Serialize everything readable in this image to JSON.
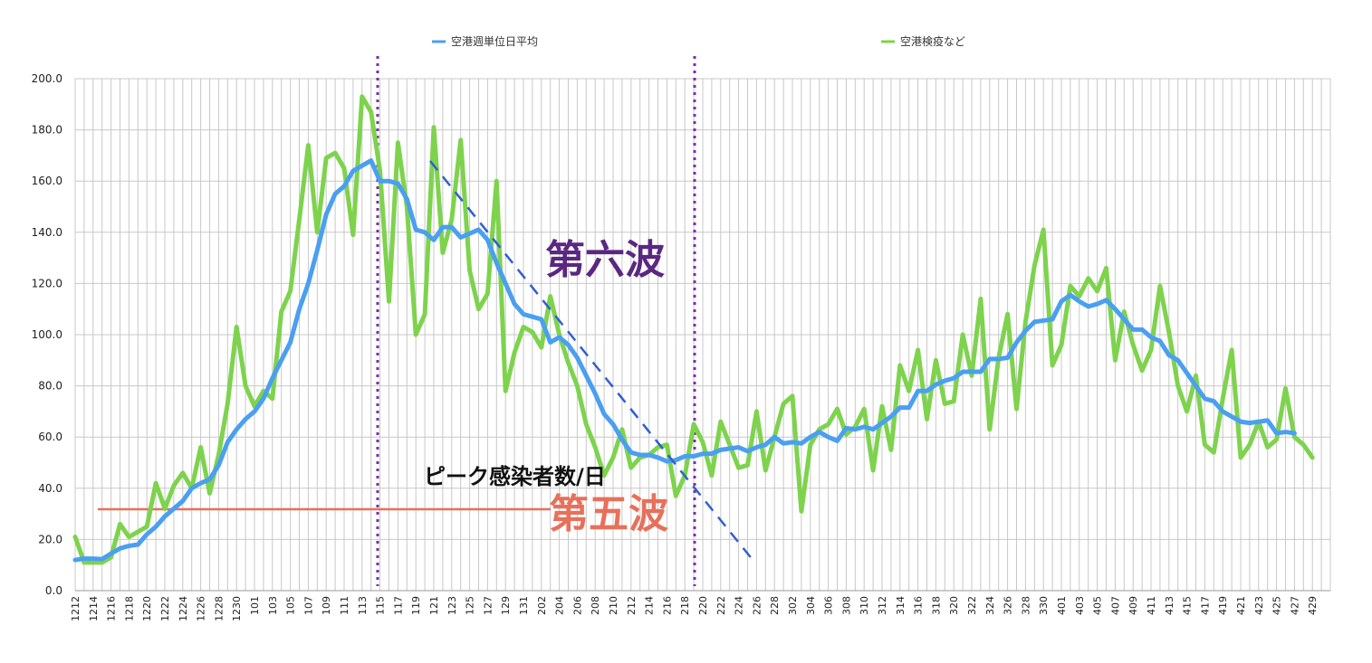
{
  "chart_data": {
    "type": "line",
    "ylim": [
      0,
      200
    ],
    "yticks": [
      "0.0",
      "20.0",
      "40.0",
      "60.0",
      "80.0",
      "100.0",
      "120.0",
      "140.0",
      "160.0",
      "180.0",
      "200.0"
    ],
    "grid": true,
    "legend_position": "top",
    "x_labels": [
      "1212",
      "1214",
      "1216",
      "1218",
      "1220",
      "1222",
      "1224",
      "1226",
      "1228",
      "1230",
      "101",
      "103",
      "105",
      "107",
      "109",
      "111",
      "113",
      "115",
      "117",
      "119",
      "121",
      "123",
      "125",
      "127",
      "129",
      "131",
      "202",
      "204",
      "206",
      "208",
      "210",
      "212",
      "214",
      "216",
      "218",
      "220",
      "222",
      "224",
      "226",
      "228",
      "302",
      "304",
      "306",
      "308",
      "310",
      "312",
      "314",
      "316",
      "318",
      "320",
      "322",
      "324",
      "326",
      "328",
      "330",
      "401",
      "403",
      "405",
      "407",
      "409",
      "411",
      "413",
      "415",
      "417",
      "419",
      "421",
      "423",
      "425",
      "427",
      "429"
    ],
    "series": [
      {
        "name": "空港週単位日平均",
        "color": "#4a9ff0",
        "values": [
          12,
          12.5,
          12.5,
          12.3,
          14.5,
          16.5,
          17.5,
          18,
          22,
          25,
          29,
          32,
          35,
          40,
          42,
          43.5,
          49,
          58,
          63,
          67,
          70,
          75,
          83,
          90,
          97,
          110,
          120,
          133,
          147,
          155,
          158,
          164,
          166,
          168,
          160,
          160,
          159,
          153,
          141,
          140,
          137,
          142,
          142,
          138,
          139.5,
          141,
          137,
          128,
          120,
          112,
          108,
          107,
          106,
          97,
          99,
          96,
          91,
          84,
          77,
          69,
          65,
          59,
          54,
          53,
          53,
          52,
          50.5,
          51,
          52.5,
          52.5,
          53.5,
          53.5,
          55,
          55.5,
          56,
          54.5,
          56,
          57,
          60,
          57.5,
          58,
          57.5,
          60,
          62,
          60,
          58.5,
          63.5,
          63,
          64,
          63,
          65.5,
          68,
          71.5,
          71.5,
          78,
          78,
          80.5,
          82,
          83,
          85.5,
          85.5,
          85.5,
          90.5,
          90.5,
          91,
          97,
          101.5,
          105,
          105.5,
          106,
          113,
          115.5,
          113,
          111,
          112,
          113.5,
          110,
          106,
          102,
          102,
          99,
          97.5,
          92,
          90,
          85,
          80,
          75,
          74,
          70,
          68,
          66,
          65.5,
          66,
          66.5,
          61.5,
          62,
          61.5
        ]
      },
      {
        "name": "空港検疫など",
        "color": "#7ed34d",
        "values": [
          21,
          11,
          11,
          11,
          13,
          26,
          21,
          23,
          25,
          42,
          32,
          41,
          46,
          40,
          56,
          38,
          53,
          73,
          103,
          80,
          72,
          78,
          75,
          109,
          117,
          145,
          174,
          140,
          169,
          171,
          165,
          139,
          193,
          187,
          164,
          113,
          175,
          150,
          100,
          108,
          181,
          132,
          145,
          176,
          125,
          110,
          116,
          160,
          78,
          93,
          103,
          101,
          95,
          115,
          100,
          89,
          80,
          65,
          56,
          45,
          52,
          63,
          48,
          52,
          53,
          56,
          57,
          37,
          45,
          65,
          58,
          45,
          66,
          57,
          48,
          49,
          70,
          47,
          60,
          73,
          76,
          31,
          57,
          63,
          65,
          71,
          61,
          64,
          71,
          47,
          72,
          55,
          88,
          78,
          94,
          67,
          90,
          73,
          74,
          100,
          84,
          114,
          63,
          91,
          108,
          71,
          105,
          127,
          141,
          88,
          96,
          119,
          115,
          122,
          117,
          126,
          90,
          109,
          96,
          86,
          94,
          119,
          101,
          80,
          70,
          84,
          57,
          54,
          75,
          94,
          52,
          57,
          66,
          56,
          59,
          79,
          60,
          57,
          52
        ]
      }
    ],
    "annotations": {
      "peak_label": "ピーク感染者数/日",
      "wave6": "第六波",
      "wave5": "第五波"
    }
  },
  "colors": {
    "wave6": "#5a2781",
    "wave5": "#e8705a",
    "trend": "#2f5fd0",
    "divider": "#7a2ca8",
    "grid": "#c8c8c8"
  }
}
